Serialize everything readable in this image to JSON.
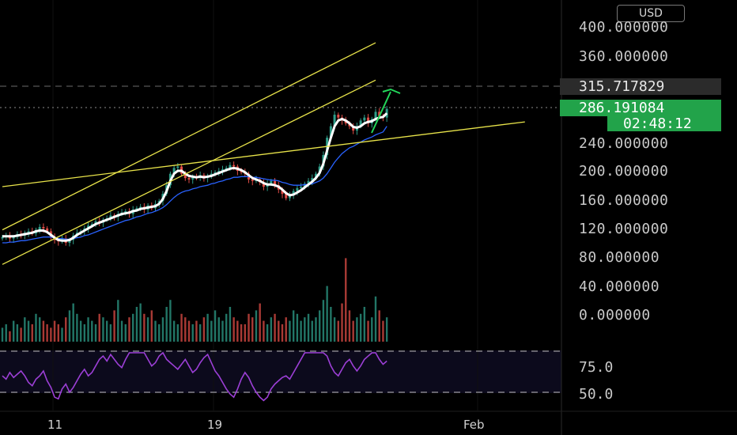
{
  "currency": "USD",
  "colors": {
    "background": "#000000",
    "up": "#2e9e8a",
    "down": "#e24d47",
    "sma": "#ffffff",
    "ema": "#2962ff",
    "trendline": "#e8e34a",
    "arrow": "#22d65a",
    "rsi": "#9c3fd6",
    "last_price_tag": "#22a34a",
    "marker_tag": "#2b2b2b"
  },
  "price_axis": {
    "labels": [
      "400.000000",
      "360.000000",
      "240.000000",
      "200.000000",
      "160.000000",
      "120.000000",
      "80.000000",
      "40.000000",
      "0.000000"
    ]
  },
  "price_tags": {
    "marker": "315.717829",
    "last_price": "286.191084",
    "countdown": "02:48:12"
  },
  "time_axis": {
    "labels": [
      "11",
      "19",
      "Feb"
    ]
  },
  "rsi_axis": {
    "labels": [
      "75.0",
      "50.0"
    ]
  },
  "chart_data": {
    "type": "line",
    "symbol_quote": "USD",
    "price_scale": [
      0,
      400
    ],
    "candles_close_approx": [
      108,
      110,
      106,
      108,
      112,
      110,
      114,
      116,
      113,
      118,
      122,
      120,
      116,
      108,
      104,
      102,
      106,
      100,
      104,
      110,
      114,
      116,
      120,
      124,
      126,
      130,
      128,
      132,
      134,
      138,
      136,
      140,
      142,
      144,
      140,
      146,
      148,
      150,
      146,
      152,
      148,
      154,
      158,
      168,
      180,
      196,
      204,
      206,
      196,
      190,
      188,
      192,
      190,
      194,
      190,
      192,
      196,
      198,
      200,
      202,
      204,
      208,
      206,
      200,
      198,
      196,
      188,
      186,
      188,
      184,
      178,
      182,
      186,
      180,
      174,
      168,
      162,
      166,
      172,
      176,
      178,
      182,
      186,
      190,
      196,
      206,
      222,
      246,
      262,
      278,
      274,
      270,
      266,
      262,
      256,
      262,
      270,
      274,
      266,
      272,
      282,
      276,
      274,
      286
    ],
    "sma_approx": [
      109,
      109,
      109,
      109,
      110,
      111,
      112,
      113,
      114,
      116,
      117,
      117,
      115,
      111,
      107,
      104,
      103,
      103,
      104,
      107,
      111,
      114,
      117,
      120,
      123,
      126,
      128,
      130,
      132,
      134,
      136,
      138,
      140,
      141,
      142,
      144,
      145,
      147,
      148,
      149,
      150,
      151,
      154,
      161,
      172,
      186,
      196,
      200,
      200,
      196,
      193,
      192,
      191,
      192,
      191,
      192,
      193,
      195,
      197,
      199,
      201,
      203,
      204,
      203,
      201,
      198,
      194,
      190,
      188,
      186,
      183,
      181,
      181,
      180,
      178,
      174,
      169,
      166,
      167,
      170,
      173,
      177,
      181,
      185,
      190,
      197,
      210,
      228,
      246,
      262,
      270,
      272,
      270,
      266,
      261,
      260,
      262,
      266,
      268,
      269,
      272,
      274,
      275,
      280
    ],
    "ema_approx": [
      100,
      100,
      101,
      101,
      102,
      103,
      103,
      104,
      105,
      106,
      107,
      108,
      108,
      108,
      107,
      106,
      106,
      105,
      105,
      106,
      107,
      108,
      110,
      111,
      113,
      115,
      117,
      119,
      121,
      123,
      125,
      127,
      129,
      131,
      132,
      134,
      136,
      137,
      139,
      141,
      142,
      144,
      146,
      149,
      153,
      158,
      163,
      167,
      170,
      172,
      173,
      175,
      176,
      178,
      179,
      180,
      182,
      183,
      185,
      186,
      188,
      189,
      191,
      191,
      192,
      192,
      192,
      191,
      191,
      190,
      189,
      188,
      187,
      187,
      186,
      184,
      183,
      181,
      180,
      180,
      180,
      181,
      181,
      182,
      184,
      186,
      190,
      196,
      204,
      212,
      218,
      224,
      228,
      232,
      234,
      237,
      240,
      243,
      245,
      247,
      250,
      252,
      254,
      262
    ],
    "trendlines_price": [
      {
        "name": "channel-upper",
        "from": [
          0,
          118
        ],
        "to": [
          100,
          378
        ]
      },
      {
        "name": "channel-lower",
        "from": [
          0,
          70
        ],
        "to": [
          100,
          326
        ]
      },
      {
        "name": "horizontal-support",
        "from": [
          0,
          178
        ],
        "to": [
          140,
          268
        ]
      }
    ],
    "rsi_levels": [
      75.0,
      50.0
    ],
    "rsi_approx": [
      60,
      58,
      62,
      59,
      61,
      63,
      60,
      56,
      54,
      58,
      60,
      63,
      57,
      53,
      47,
      46,
      52,
      55,
      50,
      53,
      57,
      61,
      64,
      60,
      62,
      66,
      70,
      72,
      69,
      73,
      70,
      67,
      65,
      70,
      74,
      77,
      80,
      82,
      76,
      70,
      66,
      68,
      72,
      75,
      70,
      68,
      66,
      64,
      67,
      70,
      66,
      62,
      64,
      68,
      71,
      73,
      68,
      63,
      60,
      56,
      52,
      49,
      47,
      52,
      58,
      62,
      59,
      54,
      50,
      47,
      45,
      47,
      52,
      55,
      57,
      59,
      60,
      58,
      62,
      66,
      70,
      74,
      78,
      80,
      82,
      79,
      76,
      72,
      66,
      62,
      60,
      64,
      68,
      70,
      66,
      63,
      66,
      70,
      72,
      74,
      76,
      70,
      67,
      69
    ],
    "volume_approx": [
      4,
      5,
      3,
      6,
      5,
      4,
      7,
      6,
      5,
      8,
      7,
      6,
      5,
      4,
      6,
      5,
      4,
      7,
      9,
      11,
      8,
      6,
      5,
      7,
      6,
      5,
      8,
      7,
      6,
      5,
      9,
      12,
      6,
      5,
      7,
      8,
      10,
      11,
      8,
      7,
      9,
      6,
      5,
      7,
      10,
      12,
      6,
      5,
      8,
      7,
      6,
      5,
      6,
      5,
      7,
      8,
      6,
      9,
      7,
      6,
      8,
      10,
      7,
      6,
      5,
      5,
      8,
      7,
      9,
      11,
      6,
      5,
      7,
      8,
      6,
      5,
      7,
      6,
      9,
      8,
      6,
      7,
      8,
      6,
      7,
      9,
      12,
      16,
      10,
      7,
      6,
      11,
      24,
      9,
      6,
      7,
      8,
      10,
      6,
      7,
      13,
      9,
      6,
      7
    ]
  }
}
